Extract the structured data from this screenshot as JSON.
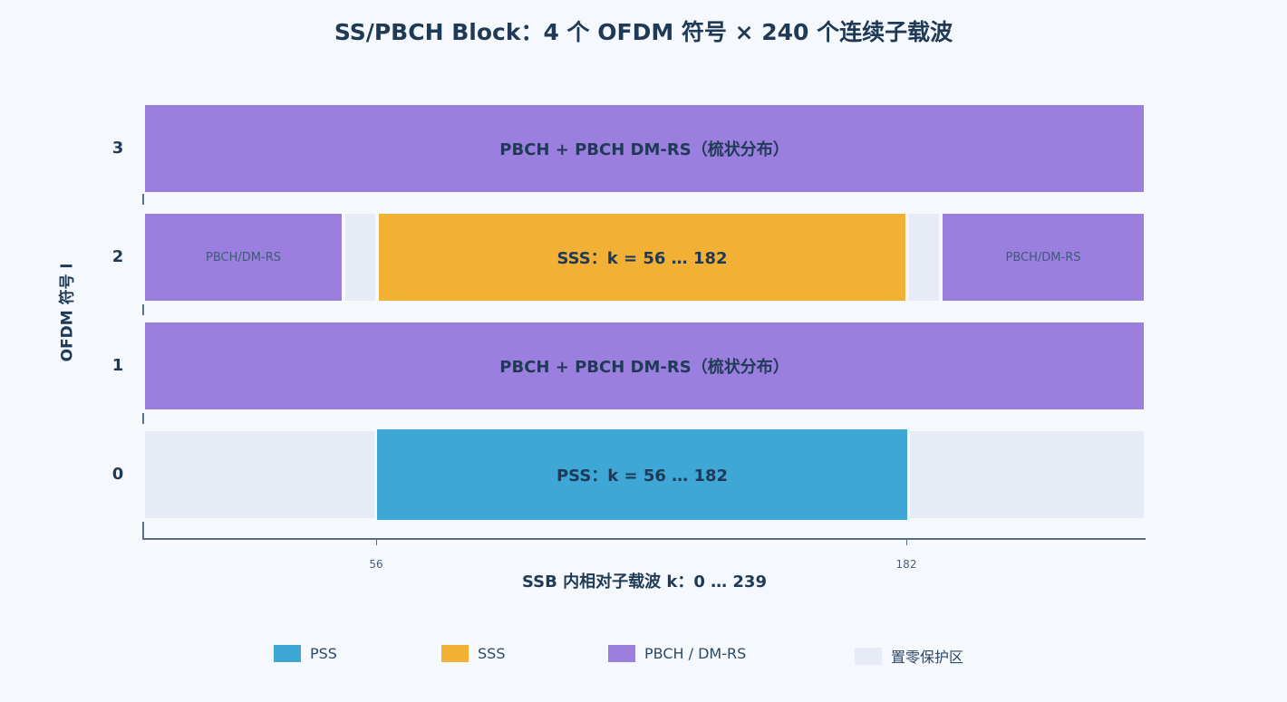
{
  "title": "SS/PBCH Block：4 个 OFDM 符号 × 240 个连续子载波",
  "ylabel": "OFDM 符号 l",
  "xlabel": "SSB 内相对子载波 k：0 … 239",
  "rows": [
    {
      "symbol": "3",
      "main_label": "PBCH + PBCH DM-RS（梳状分布）"
    },
    {
      "symbol": "2",
      "main_label": "SSS：k = 56 … 182",
      "side_left": "PBCH/DM-RS",
      "side_right": "PBCH/DM-RS"
    },
    {
      "symbol": "1",
      "main_label": "PBCH + PBCH DM-RS（梳状分布）"
    },
    {
      "symbol": "0",
      "main_label": "PSS：k = 56 … 182"
    }
  ],
  "x_ticks": [
    "56",
    "182"
  ],
  "legend": [
    {
      "label": "PSS",
      "color": "#3ea7d6"
    },
    {
      "label": "SSS",
      "color": "#f2b035"
    },
    {
      "label": "PBCH / DM-RS",
      "color": "#9b7fde"
    },
    {
      "label": "置零保护区",
      "color": "#e7ebf5"
    }
  ]
}
